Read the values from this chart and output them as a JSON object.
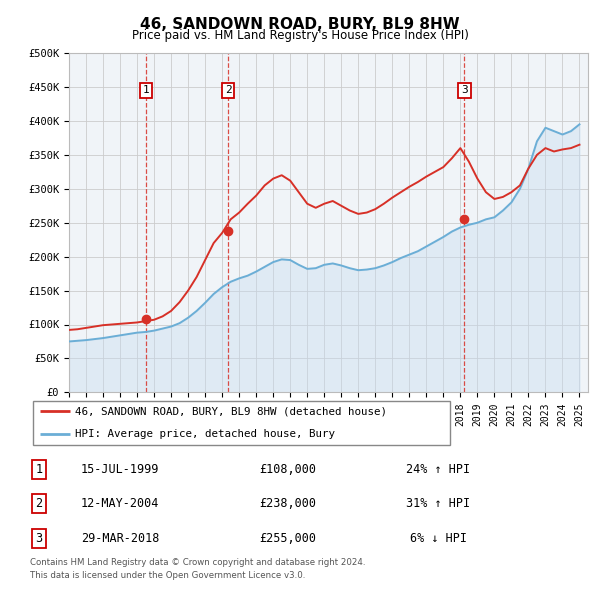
{
  "title": "46, SANDOWN ROAD, BURY, BL9 8HW",
  "subtitle": "Price paid vs. HM Land Registry's House Price Index (HPI)",
  "x_start": 1995.0,
  "x_end": 2025.5,
  "y_min": 0,
  "y_max": 500000,
  "y_ticks": [
    0,
    50000,
    100000,
    150000,
    200000,
    250000,
    300000,
    350000,
    400000,
    450000,
    500000
  ],
  "y_tick_labels": [
    "£0",
    "£50K",
    "£100K",
    "£150K",
    "£200K",
    "£250K",
    "£300K",
    "£350K",
    "£400K",
    "£450K",
    "£500K"
  ],
  "hpi_color": "#6baed6",
  "hpi_fill_color": "#c6dbef",
  "price_color": "#d73027",
  "sale_marker_color": "#d73027",
  "vline_color": "#d73027",
  "sale_box_color": "#cc0000",
  "grid_color": "#cccccc",
  "bg_color": "#f0f4f8",
  "sales": [
    {
      "date_num": 1999.54,
      "price": 108000,
      "label": "1"
    },
    {
      "date_num": 2004.36,
      "price": 238000,
      "label": "2"
    },
    {
      "date_num": 2018.24,
      "price": 255000,
      "label": "3"
    }
  ],
  "hpi_data": [
    [
      1995.0,
      75000
    ],
    [
      1995.5,
      76000
    ],
    [
      1996.0,
      77000
    ],
    [
      1996.5,
      78500
    ],
    [
      1997.0,
      80000
    ],
    [
      1997.5,
      82000
    ],
    [
      1998.0,
      84000
    ],
    [
      1998.5,
      86000
    ],
    [
      1999.0,
      88000
    ],
    [
      1999.5,
      89000
    ],
    [
      2000.0,
      91000
    ],
    [
      2000.5,
      94000
    ],
    [
      2001.0,
      97000
    ],
    [
      2001.5,
      102000
    ],
    [
      2002.0,
      110000
    ],
    [
      2002.5,
      120000
    ],
    [
      2003.0,
      132000
    ],
    [
      2003.5,
      145000
    ],
    [
      2004.0,
      155000
    ],
    [
      2004.5,
      163000
    ],
    [
      2005.0,
      168000
    ],
    [
      2005.5,
      172000
    ],
    [
      2006.0,
      178000
    ],
    [
      2006.5,
      185000
    ],
    [
      2007.0,
      192000
    ],
    [
      2007.5,
      196000
    ],
    [
      2008.0,
      195000
    ],
    [
      2008.5,
      188000
    ],
    [
      2009.0,
      182000
    ],
    [
      2009.5,
      183000
    ],
    [
      2010.0,
      188000
    ],
    [
      2010.5,
      190000
    ],
    [
      2011.0,
      187000
    ],
    [
      2011.5,
      183000
    ],
    [
      2012.0,
      180000
    ],
    [
      2012.5,
      181000
    ],
    [
      2013.0,
      183000
    ],
    [
      2013.5,
      187000
    ],
    [
      2014.0,
      192000
    ],
    [
      2014.5,
      198000
    ],
    [
      2015.0,
      203000
    ],
    [
      2015.5,
      208000
    ],
    [
      2016.0,
      215000
    ],
    [
      2016.5,
      222000
    ],
    [
      2017.0,
      229000
    ],
    [
      2017.5,
      237000
    ],
    [
      2018.0,
      243000
    ],
    [
      2018.5,
      247000
    ],
    [
      2019.0,
      250000
    ],
    [
      2019.5,
      255000
    ],
    [
      2020.0,
      258000
    ],
    [
      2020.5,
      268000
    ],
    [
      2021.0,
      280000
    ],
    [
      2021.5,
      300000
    ],
    [
      2022.0,
      330000
    ],
    [
      2022.5,
      370000
    ],
    [
      2023.0,
      390000
    ],
    [
      2023.5,
      385000
    ],
    [
      2024.0,
      380000
    ],
    [
      2024.5,
      385000
    ],
    [
      2025.0,
      395000
    ]
  ],
  "price_data": [
    [
      1995.0,
      92000
    ],
    [
      1995.5,
      93000
    ],
    [
      1996.0,
      95000
    ],
    [
      1996.5,
      97000
    ],
    [
      1997.0,
      99000
    ],
    [
      1997.5,
      100000
    ],
    [
      1998.0,
      101000
    ],
    [
      1998.5,
      102000
    ],
    [
      1999.0,
      103000
    ],
    [
      1999.5,
      105000
    ],
    [
      2000.0,
      107000
    ],
    [
      2000.5,
      112000
    ],
    [
      2001.0,
      120000
    ],
    [
      2001.5,
      133000
    ],
    [
      2002.0,
      150000
    ],
    [
      2002.5,
      170000
    ],
    [
      2003.0,
      195000
    ],
    [
      2003.5,
      220000
    ],
    [
      2004.0,
      235000
    ],
    [
      2004.5,
      255000
    ],
    [
      2005.0,
      265000
    ],
    [
      2005.5,
      278000
    ],
    [
      2006.0,
      290000
    ],
    [
      2006.5,
      305000
    ],
    [
      2007.0,
      315000
    ],
    [
      2007.5,
      320000
    ],
    [
      2008.0,
      312000
    ],
    [
      2008.5,
      295000
    ],
    [
      2009.0,
      278000
    ],
    [
      2009.5,
      272000
    ],
    [
      2010.0,
      278000
    ],
    [
      2010.5,
      282000
    ],
    [
      2011.0,
      275000
    ],
    [
      2011.5,
      268000
    ],
    [
      2012.0,
      263000
    ],
    [
      2012.5,
      265000
    ],
    [
      2013.0,
      270000
    ],
    [
      2013.5,
      278000
    ],
    [
      2014.0,
      287000
    ],
    [
      2014.5,
      295000
    ],
    [
      2015.0,
      303000
    ],
    [
      2015.5,
      310000
    ],
    [
      2016.0,
      318000
    ],
    [
      2016.5,
      325000
    ],
    [
      2017.0,
      332000
    ],
    [
      2017.5,
      345000
    ],
    [
      2018.0,
      360000
    ],
    [
      2018.5,
      340000
    ],
    [
      2019.0,
      315000
    ],
    [
      2019.5,
      295000
    ],
    [
      2020.0,
      285000
    ],
    [
      2020.5,
      288000
    ],
    [
      2021.0,
      295000
    ],
    [
      2021.5,
      305000
    ],
    [
      2022.0,
      330000
    ],
    [
      2022.5,
      350000
    ],
    [
      2023.0,
      360000
    ],
    [
      2023.5,
      355000
    ],
    [
      2024.0,
      358000
    ],
    [
      2024.5,
      360000
    ],
    [
      2025.0,
      365000
    ]
  ],
  "x_tick_years": [
    1995,
    1996,
    1997,
    1998,
    1999,
    2000,
    2001,
    2002,
    2003,
    2004,
    2005,
    2006,
    2007,
    2008,
    2009,
    2010,
    2011,
    2012,
    2013,
    2014,
    2015,
    2016,
    2017,
    2018,
    2019,
    2020,
    2021,
    2022,
    2023,
    2024,
    2025
  ],
  "legend_items": [
    {
      "label": "46, SANDOWN ROAD, BURY, BL9 8HW (detached house)",
      "color": "#d73027"
    },
    {
      "label": "HPI: Average price, detached house, Bury",
      "color": "#6baed6"
    }
  ],
  "table_rows": [
    {
      "num": "1",
      "date": "15-JUL-1999",
      "price": "£108,000",
      "change": "24% ↑ HPI"
    },
    {
      "num": "2",
      "date": "12-MAY-2004",
      "price": "£238,000",
      "change": "31% ↑ HPI"
    },
    {
      "num": "3",
      "date": "29-MAR-2018",
      "price": "£255,000",
      "change": "6% ↓ HPI"
    }
  ],
  "footnote1": "Contains HM Land Registry data © Crown copyright and database right 2024.",
  "footnote2": "This data is licensed under the Open Government Licence v3.0."
}
